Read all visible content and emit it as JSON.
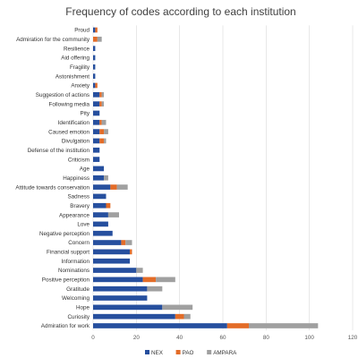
{
  "chart_data": {
    "type": "bar",
    "orientation": "horizontal",
    "stacked": true,
    "title": "Frequency of codes according to each institution",
    "xlabel": "",
    "ylabel": "",
    "xlim": [
      0,
      120
    ],
    "x_ticks": [
      "0",
      "20",
      "40",
      "60",
      "80",
      "100",
      "120"
    ],
    "grid": "vertical",
    "legend": "bottom",
    "categories": [
      "Proud",
      "Admiration for the community",
      "Resilience",
      "Aid offering",
      "Fragility",
      "Astonishment",
      "Anxiety",
      "Suggestion of actions",
      "Following media",
      "Pity",
      "Identification",
      "Caused emotion",
      "Divulgation",
      "Defense of the institution",
      "Criticism",
      "Age",
      "Happiness",
      "Attitude towards conservation",
      "Sadness",
      "Bravery",
      "Appearance",
      "Love",
      "Negative perception",
      "Concern",
      "Financial support",
      "Information",
      "Nominations",
      "Positive perception",
      "Gratitude",
      "Welcoming",
      "Hope",
      "Curiosity",
      "Admiration for work"
    ],
    "series": [
      {
        "name": "NEX",
        "color": "#264f9e",
        "values": [
          1,
          0,
          1,
          1,
          1,
          1,
          1,
          3,
          3,
          3,
          3,
          3,
          3,
          3,
          3,
          5,
          5,
          8,
          6,
          6,
          7,
          7,
          9,
          13,
          17,
          17,
          20,
          23,
          25,
          25,
          32,
          38,
          62
        ]
      },
      {
        "name": "PAO",
        "color": "#e36c28",
        "values": [
          1,
          2,
          0,
          0,
          0,
          0,
          1,
          1,
          1,
          0,
          1,
          2,
          2,
          0,
          0,
          0,
          0,
          3,
          0,
          2,
          0,
          0,
          0,
          2,
          1,
          0,
          0,
          6,
          0,
          0,
          0,
          4,
          10
        ]
      },
      {
        "name": "AMPARA",
        "color": "#a0a0a0",
        "values": [
          0,
          2,
          0,
          0,
          0,
          0,
          0,
          1,
          1,
          0,
          2,
          2,
          1,
          0,
          0,
          0,
          2,
          5,
          0,
          0,
          5,
          0,
          0,
          3,
          0,
          0,
          3,
          9,
          7,
          0,
          14,
          3,
          32
        ]
      }
    ]
  }
}
